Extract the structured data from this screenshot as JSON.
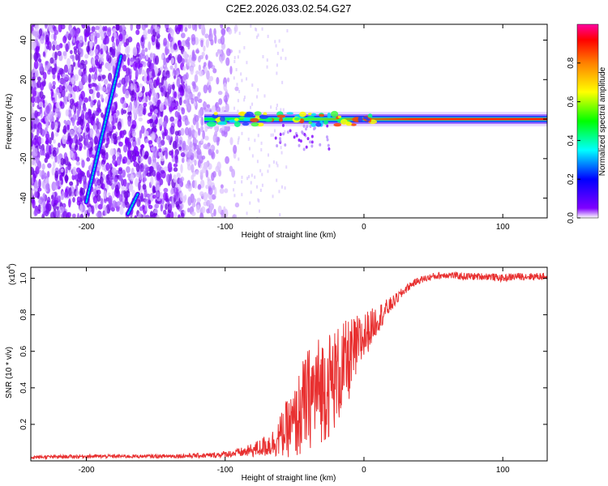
{
  "title": "C2E2.2026.033.02.54.G27",
  "chart_data": [
    {
      "type": "heatmap",
      "name": "spectrogram",
      "xlabel": "Height of straight line (km)",
      "ylabel": "Frequency (Hz)",
      "xlim": [
        -240,
        132
      ],
      "ylim": [
        -50,
        48
      ],
      "x_ticks": [
        -200,
        -100,
        0,
        100
      ],
      "x_tick_labels": [
        "-200",
        "-100",
        "0",
        "100"
      ],
      "y_ticks": [
        -40,
        -20,
        0,
        20,
        40
      ],
      "y_tick_labels": [
        "-40",
        "-20",
        "0",
        "20",
        "40"
      ],
      "colorbar": {
        "label": "Normalized spectral amplitude",
        "range": [
          0.0,
          1.0
        ],
        "ticks": [
          0.0,
          0.2,
          0.4,
          0.6,
          0.8
        ],
        "tick_labels": [
          "0.0",
          "0.2",
          "0.4",
          "0.6",
          "0.8"
        ],
        "colormap": [
          "#ffffff",
          "#8000ff",
          "#0000ff",
          "#00ffff",
          "#00ff00",
          "#ffff00",
          "#ff8000",
          "#ff0000",
          "#ff00a0"
        ]
      },
      "features": [
        {
          "name": "diagonal-streak",
          "x": [
            -200,
            -175
          ],
          "y": [
            -42,
            32
          ],
          "amplitude": 0.3
        },
        {
          "name": "short-streak",
          "x": [
            -170,
            -163
          ],
          "y": [
            -48,
            -38
          ],
          "amplitude": 0.25
        },
        {
          "name": "carrier-band",
          "x": [
            -115,
            132
          ],
          "y_center": 0,
          "amplitude": 0.85
        }
      ]
    },
    {
      "type": "line",
      "name": "snr",
      "xlabel": "Height of straight line (km)",
      "ylabel": "SNR (10 * v/v)",
      "y_multiplier_label": "(x10",
      "y_multiplier_exp": "4",
      "y_multiplier_close": ")",
      "xlim": [
        -240,
        132
      ],
      "ylim": [
        0,
        1.06
      ],
      "x_ticks": [
        -200,
        -100,
        0,
        100
      ],
      "x_tick_labels": [
        "-200",
        "-100",
        "0",
        "100"
      ],
      "y_ticks": [
        0.2,
        0.4,
        0.6,
        0.8,
        1.0
      ],
      "y_tick_labels": [
        "0.2",
        "0.4",
        "0.6",
        "0.8",
        "1.0"
      ],
      "color": "#e83030",
      "series": [
        {
          "name": "SNR",
          "x": [
            -240,
            -200,
            -150,
            -110,
            -95,
            -85,
            -75,
            -65,
            -60,
            -55,
            -50,
            -45,
            -40,
            -35,
            -30,
            -25,
            -20,
            -15,
            -10,
            -5,
            0,
            5,
            10,
            15,
            20,
            25,
            30,
            35,
            40,
            45,
            50,
            60,
            70,
            80,
            90,
            100,
            110,
            120,
            132
          ],
          "values": [
            0.02,
            0.025,
            0.025,
            0.03,
            0.04,
            0.05,
            0.07,
            0.1,
            0.14,
            0.18,
            0.2,
            0.28,
            0.34,
            0.38,
            0.4,
            0.42,
            0.46,
            0.5,
            0.56,
            0.62,
            0.68,
            0.73,
            0.78,
            0.82,
            0.86,
            0.9,
            0.94,
            0.97,
            0.99,
            1.0,
            1.01,
            1.02,
            1.01,
            1.01,
            1.01,
            1.0,
            1.01,
            1.01,
            1.01
          ],
          "noise": [
            0.01,
            0.01,
            0.01,
            0.015,
            0.02,
            0.03,
            0.05,
            0.08,
            0.12,
            0.16,
            0.2,
            0.26,
            0.28,
            0.3,
            0.3,
            0.3,
            0.28,
            0.26,
            0.22,
            0.18,
            0.14,
            0.1,
            0.08,
            0.06,
            0.04,
            0.03,
            0.025,
            0.02,
            0.02,
            0.02,
            0.02,
            0.02,
            0.02,
            0.02,
            0.02,
            0.02,
            0.02,
            0.02,
            0.02
          ]
        }
      ]
    }
  ]
}
